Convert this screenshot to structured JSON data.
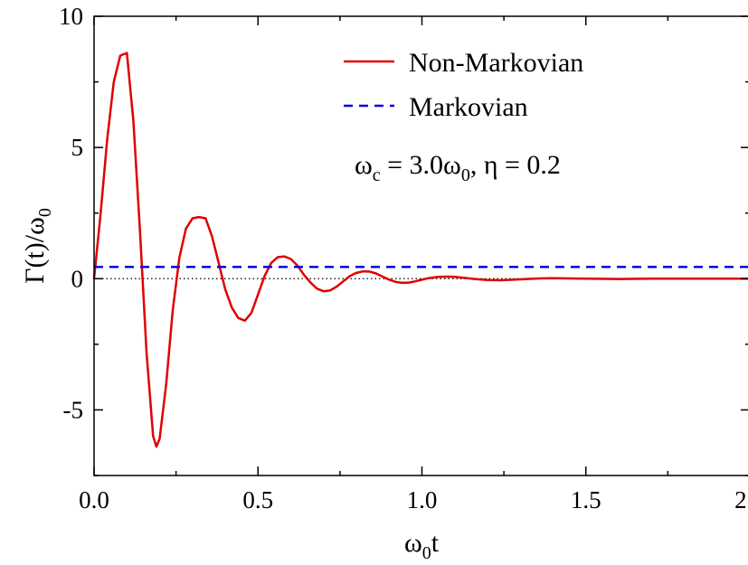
{
  "chart_data": {
    "type": "line",
    "xlabel": {
      "main": "ω",
      "sub": "0",
      "tail": "t"
    },
    "ylabel": {
      "main": "Γ(t)/ω",
      "sub": "0"
    },
    "xlim": [
      0.0,
      2.0
    ],
    "ylim": [
      -7.5,
      10.0
    ],
    "x_ticks": [
      {
        "value": 0.0,
        "label": "0.0"
      },
      {
        "value": 0.5,
        "label": "0.5"
      },
      {
        "value": 1.0,
        "label": "1.0"
      },
      {
        "value": 1.5,
        "label": "1.5"
      },
      {
        "value": 2.0,
        "label": "2.0"
      }
    ],
    "y_ticks": [
      {
        "value": 10,
        "label": "10"
      },
      {
        "value": 5,
        "label": "5"
      },
      {
        "value": 0,
        "label": "0"
      },
      {
        "value": -5,
        "label": "-5"
      }
    ],
    "grid": false,
    "legend_position": "top-right",
    "series": [
      {
        "name": "Non-Markovian",
        "color": "#e00000",
        "style": "solid",
        "x": [
          0.0,
          0.02,
          0.04,
          0.06,
          0.08,
          0.1,
          0.12,
          0.14,
          0.16,
          0.18,
          0.19,
          0.2,
          0.22,
          0.24,
          0.26,
          0.28,
          0.3,
          0.32,
          0.34,
          0.36,
          0.38,
          0.4,
          0.42,
          0.44,
          0.46,
          0.48,
          0.5,
          0.52,
          0.54,
          0.56,
          0.58,
          0.6,
          0.62,
          0.64,
          0.66,
          0.68,
          0.7,
          0.72,
          0.74,
          0.76,
          0.78,
          0.8,
          0.82,
          0.84,
          0.86,
          0.88,
          0.9,
          0.92,
          0.94,
          0.96,
          0.98,
          1.0,
          1.02,
          1.05,
          1.08,
          1.1,
          1.13,
          1.16,
          1.2,
          1.24,
          1.28,
          1.32,
          1.36,
          1.4,
          1.45,
          1.5,
          1.6,
          1.7,
          1.8,
          1.9,
          2.0
        ],
        "y": [
          0.0,
          2.5,
          5.3,
          7.5,
          8.5,
          8.6,
          6.0,
          1.8,
          -2.8,
          -6.0,
          -6.4,
          -6.1,
          -4.0,
          -1.2,
          0.8,
          1.9,
          2.3,
          2.35,
          2.3,
          1.6,
          0.6,
          -0.4,
          -1.1,
          -1.5,
          -1.6,
          -1.3,
          -0.6,
          0.1,
          0.6,
          0.82,
          0.85,
          0.75,
          0.5,
          0.15,
          -0.15,
          -0.38,
          -0.48,
          -0.45,
          -0.3,
          -0.1,
          0.1,
          0.22,
          0.28,
          0.27,
          0.2,
          0.08,
          -0.04,
          -0.12,
          -0.16,
          -0.15,
          -0.1,
          -0.04,
          0.02,
          0.07,
          0.08,
          0.07,
          0.03,
          -0.01,
          -0.05,
          -0.06,
          -0.04,
          -0.01,
          0.01,
          0.02,
          0.01,
          0.0,
          -0.01,
          0.0,
          0.0,
          0.0,
          0.0
        ]
      },
      {
        "name": "Markovian",
        "color": "#0000e0",
        "style": "dashed",
        "x": [
          0.0,
          2.0
        ],
        "y": [
          0.45,
          0.45
        ]
      }
    ],
    "reference_line": {
      "y": 0,
      "color": "#000000",
      "style": "dotted"
    },
    "annotation": {
      "parts": [
        {
          "t": "ω",
          "sub": "c"
        },
        {
          "t": " = 3.0ω",
          "sub": "0"
        },
        {
          "t": ", η = 0.2",
          "sub": ""
        }
      ]
    }
  }
}
